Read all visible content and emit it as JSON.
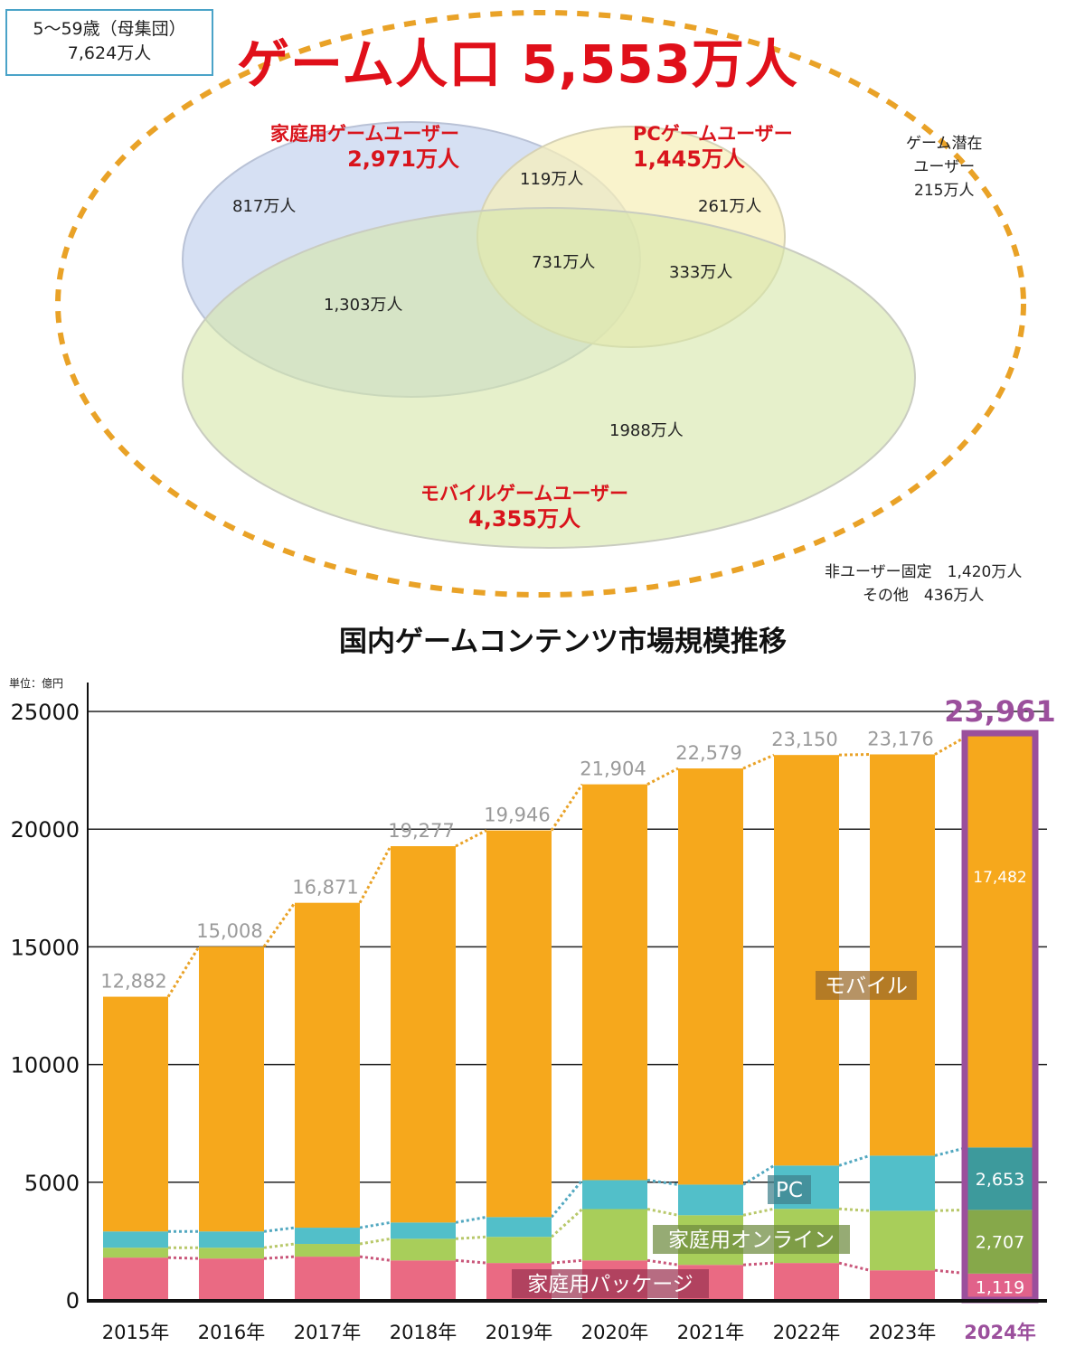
{
  "population_box": {
    "line1": "5～59歳（母集団）",
    "line2": "7,624万人"
  },
  "headline": "ゲーム人口 5,553万人",
  "venn": {
    "home": {
      "label": "家庭用ゲームユーザー",
      "value": "2,971万人"
    },
    "pc": {
      "label": "PCゲームユーザー",
      "value": "1,445万人"
    },
    "mobile": {
      "label": "モバイルゲームユーザー",
      "value": "4,355万人"
    },
    "regions": {
      "home_only": "817万人",
      "home_pc": "119万人",
      "pc_only": "261万人",
      "all_three": "731万人",
      "pc_mobile": "333万人",
      "home_mobile": "1,303万人",
      "mobile_only": "1988万人"
    },
    "potential": {
      "line1": "ゲーム潜在",
      "line2": "ユーザー",
      "line3": "215万人"
    },
    "non_user": {
      "line1": "非ユーザー固定　1,420万人",
      "line2": "その他　436万人"
    }
  },
  "colors": {
    "mobile": "#f6a81c",
    "pc": "#52bfc9",
    "online": "#a8ce5a",
    "package": "#ea6a83",
    "mobile_2024": "#f6a81c",
    "pc_2024": "#3d9a9c",
    "online_2024": "#86a84a",
    "package_2024": "#e1628a",
    "highlight": "#9b4f9c",
    "total_label": "#9a9a9a",
    "headline_red": "#e0101a",
    "dotted_orange": "#e9a227"
  },
  "chart_data": {
    "type": "bar",
    "stacked": true,
    "title": "国内ゲームコンテンツ市場規模推移",
    "unit_label": "単位：億円",
    "xlabel": "",
    "ylabel": "億円",
    "ylim": [
      0,
      25000
    ],
    "yticks": [
      0,
      5000,
      10000,
      15000,
      20000,
      25000
    ],
    "ytick_labels": [
      "0",
      "5000",
      "10000",
      "15000",
      "20000",
      "25000"
    ],
    "grid": true,
    "categories": [
      "2015年",
      "2016年",
      "2017年",
      "2018年",
      "2019年",
      "2020年",
      "2021年",
      "2022年",
      "2023年",
      "2024年"
    ],
    "highlight_category": "2024年",
    "totals": [
      12882,
      15008,
      16871,
      19277,
      19946,
      21904,
      22579,
      23150,
      23176,
      23961
    ],
    "total_labels": [
      "12,882",
      "15,008",
      "16,871",
      "19,277",
      "19,946",
      "21,904",
      "22,579",
      "23,150",
      "23,176",
      "23,961"
    ],
    "series": [
      {
        "name": "家庭用パッケージ",
        "key": "package",
        "values": [
          1800,
          1760,
          1840,
          1680,
          1570,
          1680,
          1490,
          1570,
          1260,
          1119
        ]
      },
      {
        "name": "家庭用オンライン",
        "key": "online",
        "values": [
          420,
          460,
          540,
          920,
          1110,
          2180,
          2110,
          2300,
          2530,
          2707
        ]
      },
      {
        "name": "PC",
        "key": "pc",
        "values": [
          690,
          690,
          690,
          690,
          840,
          1230,
          1300,
          1840,
          2340,
          2653
        ]
      },
      {
        "name": "モバイル",
        "key": "mobile",
        "values": [
          9972,
          12098,
          13801,
          15987,
          16426,
          16814,
          17679,
          17440,
          17046,
          17482
        ]
      }
    ],
    "highlight_segment_labels": [
      "1,119",
      "2,707",
      "2,653",
      "17,482"
    ],
    "series_labels": {
      "mobile": "モバイル",
      "pc": "PC",
      "online": "家庭用オンライン",
      "package": "家庭用パッケージ"
    }
  }
}
